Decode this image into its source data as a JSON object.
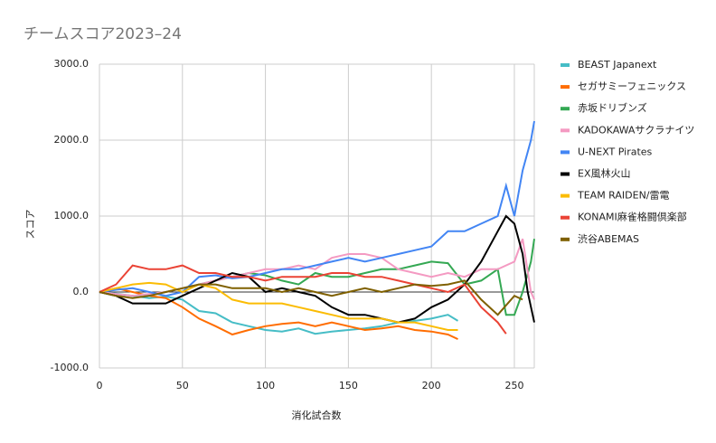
{
  "chart_data": {
    "type": "line",
    "title": "チームスコア2023–24",
    "x_label": "消化試合数",
    "y_label": "スコア",
    "xlim": [
      0,
      262
    ],
    "xticks": [
      0,
      50,
      100,
      150,
      200,
      250
    ],
    "ylim": [
      -1000,
      3000
    ],
    "yticks": [
      {
        "value": -1000,
        "label": "-1000.0"
      },
      {
        "value": 0,
        "label": "0.0"
      },
      {
        "value": 1000,
        "label": "1000.0"
      },
      {
        "value": 2000,
        "label": "2000.0"
      },
      {
        "value": 3000,
        "label": "3000.0"
      }
    ],
    "grid": true,
    "legend": "right",
    "series": [
      {
        "name": "BEAST Japanext",
        "color": "#46bdc6",
        "x": [
          0,
          10,
          20,
          30,
          40,
          50,
          60,
          70,
          80,
          90,
          100,
          110,
          120,
          130,
          140,
          150,
          160,
          170,
          180,
          190,
          200,
          210,
          216
        ],
        "values": [
          0,
          -20,
          -50,
          -80,
          -60,
          -100,
          -250,
          -280,
          -400,
          -450,
          -500,
          -520,
          -480,
          -550,
          -520,
          -500,
          -480,
          -450,
          -400,
          -380,
          -350,
          -300,
          -380
        ]
      },
      {
        "name": "セガサミーフェニックス",
        "color": "#ff6d01",
        "x": [
          0,
          10,
          20,
          30,
          40,
          50,
          60,
          70,
          80,
          90,
          100,
          110,
          120,
          130,
          140,
          150,
          160,
          170,
          180,
          190,
          200,
          210,
          216
        ],
        "values": [
          0,
          50,
          0,
          -50,
          -80,
          -200,
          -350,
          -450,
          -560,
          -500,
          -450,
          -420,
          -400,
          -450,
          -400,
          -450,
          -500,
          -480,
          -450,
          -500,
          -520,
          -560,
          -620
        ]
      },
      {
        "name": "赤坂ドリブンズ",
        "color": "#34a853",
        "x": [
          0,
          10,
          20,
          30,
          40,
          50,
          60,
          70,
          80,
          90,
          100,
          110,
          120,
          130,
          140,
          150,
          160,
          170,
          180,
          190,
          200,
          210,
          220,
          230,
          240,
          245,
          250,
          255,
          260,
          262
        ],
        "values": [
          0,
          -30,
          -50,
          -30,
          0,
          50,
          100,
          150,
          200,
          250,
          220,
          150,
          100,
          250,
          200,
          200,
          250,
          300,
          300,
          350,
          400,
          380,
          100,
          150,
          300,
          -300,
          -300,
          0,
          400,
          700
        ]
      },
      {
        "name": "KADOKAWAサクラナイツ",
        "color": "#f49ac2",
        "x": [
          0,
          20,
          40,
          50,
          60,
          70,
          80,
          90,
          100,
          110,
          120,
          130,
          140,
          150,
          160,
          170,
          180,
          190,
          200,
          210,
          220,
          230,
          240,
          250,
          255,
          260,
          262
        ],
        "values": [
          0,
          -50,
          0,
          50,
          100,
          150,
          200,
          250,
          300,
          300,
          350,
          300,
          450,
          500,
          500,
          450,
          300,
          250,
          200,
          250,
          200,
          300,
          300,
          400,
          700,
          0,
          -100
        ]
      },
      {
        "name": "U-NEXT Pirates",
        "color": "#4285f4",
        "x": [
          0,
          10,
          20,
          30,
          40,
          50,
          60,
          70,
          80,
          90,
          100,
          110,
          120,
          130,
          140,
          150,
          160,
          170,
          180,
          190,
          200,
          210,
          220,
          230,
          240,
          245,
          250,
          255,
          260,
          262
        ],
        "values": [
          0,
          30,
          50,
          0,
          -50,
          0,
          200,
          220,
          180,
          200,
          250,
          300,
          300,
          350,
          400,
          450,
          400,
          450,
          500,
          550,
          600,
          800,
          800,
          900,
          1000,
          1400,
          1000,
          1600,
          2000,
          2250
        ]
      },
      {
        "name": "EX風林火山",
        "color": "#000000",
        "x": [
          0,
          10,
          20,
          30,
          40,
          50,
          60,
          70,
          80,
          90,
          100,
          110,
          120,
          130,
          140,
          150,
          160,
          170,
          180,
          190,
          200,
          210,
          220,
          230,
          240,
          245,
          250,
          255,
          258,
          262
        ],
        "values": [
          0,
          -50,
          -150,
          -150,
          -150,
          -50,
          50,
          150,
          250,
          200,
          0,
          50,
          0,
          -50,
          -200,
          -300,
          -300,
          -350,
          -400,
          -350,
          -200,
          -100,
          100,
          400,
          800,
          1000,
          900,
          500,
          0,
          -400
        ]
      },
      {
        "name": "TEAM RAIDEN/雷電",
        "color": "#fbbc04",
        "x": [
          0,
          10,
          20,
          30,
          40,
          50,
          60,
          70,
          80,
          90,
          100,
          110,
          120,
          130,
          140,
          150,
          160,
          170,
          180,
          190,
          200,
          210,
          216
        ],
        "values": [
          0,
          50,
          100,
          120,
          100,
          0,
          100,
          50,
          -100,
          -150,
          -150,
          -150,
          -200,
          -250,
          -300,
          -350,
          -350,
          -350,
          -400,
          -400,
          -450,
          -500,
          -500
        ]
      },
      {
        "name": "KONAMI麻雀格闘倶楽部",
        "color": "#ea4335",
        "x": [
          0,
          10,
          20,
          30,
          40,
          50,
          60,
          70,
          80,
          90,
          100,
          110,
          120,
          130,
          140,
          150,
          160,
          170,
          180,
          190,
          200,
          210,
          220,
          230,
          240,
          245
        ],
        "values": [
          0,
          100,
          350,
          300,
          300,
          350,
          250,
          250,
          200,
          200,
          150,
          200,
          200,
          200,
          250,
          250,
          200,
          200,
          150,
          100,
          50,
          0,
          100,
          -200,
          -400,
          -550
        ]
      },
      {
        "name": "渋谷ABEMAS",
        "color": "#7f6000",
        "x": [
          0,
          10,
          20,
          30,
          40,
          50,
          60,
          70,
          80,
          90,
          100,
          110,
          120,
          130,
          140,
          150,
          160,
          170,
          180,
          190,
          200,
          210,
          220,
          230,
          240,
          250,
          255
        ],
        "values": [
          0,
          -50,
          -80,
          -50,
          0,
          50,
          100,
          100,
          50,
          50,
          50,
          0,
          50,
          0,
          -50,
          0,
          50,
          0,
          50,
          100,
          80,
          100,
          150,
          -100,
          -300,
          -50,
          -100
        ]
      }
    ]
  }
}
